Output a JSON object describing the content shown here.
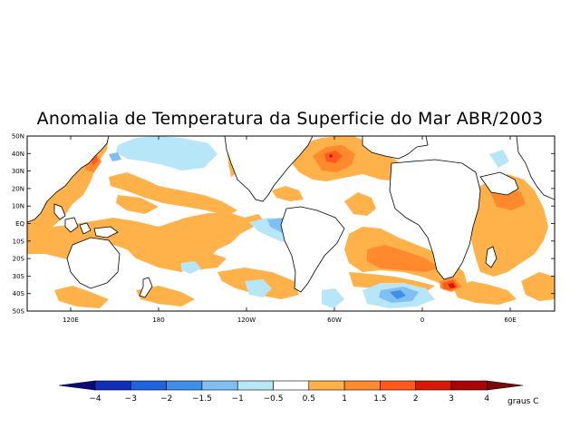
{
  "title": "Anomalia de Temperatura da Superficie do Mar ABR/2003",
  "map": {
    "lat_labels": [
      "50N",
      "40N",
      "30N",
      "20N",
      "10N",
      "EQ",
      "10S",
      "20S",
      "30S",
      "40S",
      "50S"
    ],
    "lon_labels": [
      "120E",
      "180",
      "120W",
      "60W",
      "0",
      "60E"
    ]
  },
  "colorbar": {
    "unit": "graus C",
    "colors": [
      "#0a0a7a",
      "#0f2fb5",
      "#1f64de",
      "#3d8fe8",
      "#7fbff2",
      "#b7e6f9",
      "#ffffff",
      "#ffb14a",
      "#ff8a2e",
      "#ff5a1a",
      "#d61a0a",
      "#a80505",
      "#7a0a0a"
    ],
    "labels": [
      "−4",
      "−3",
      "−2",
      "−1.5",
      "−1",
      "−0.5",
      "0.5",
      "1",
      "1.5",
      "2",
      "3",
      "4"
    ]
  }
}
